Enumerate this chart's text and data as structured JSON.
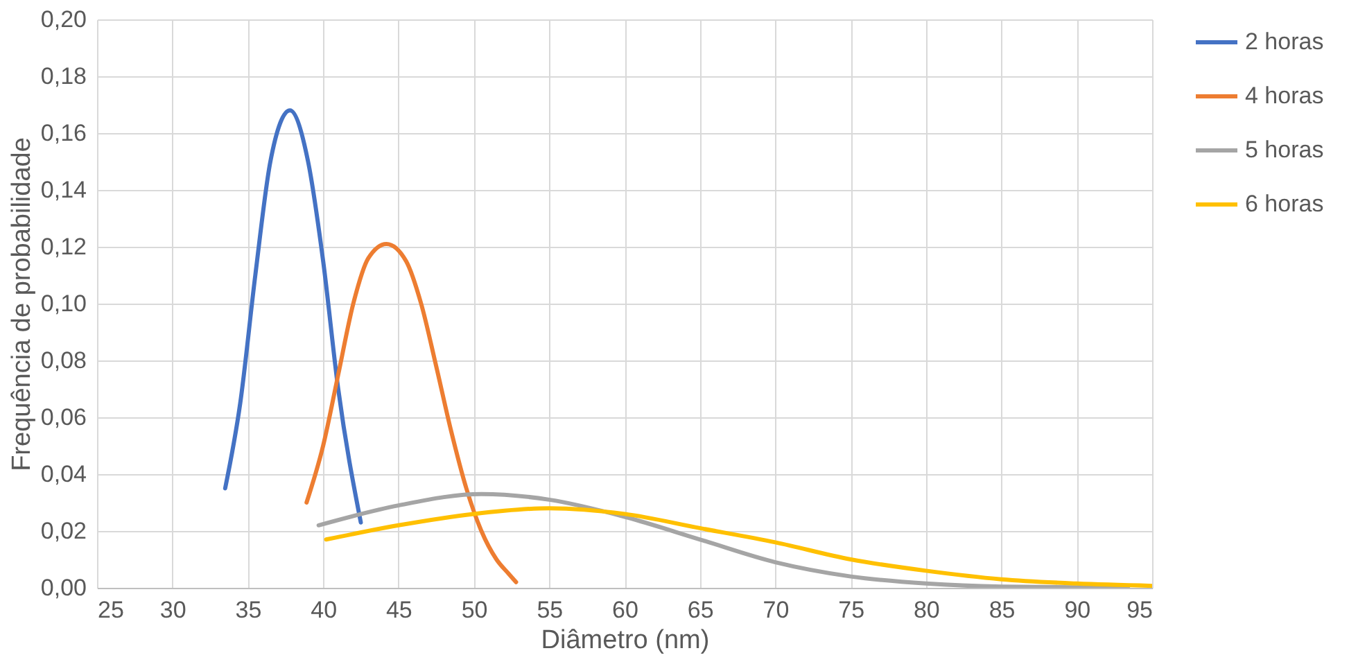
{
  "chart_data": {
    "type": "line",
    "xlabel": "Diâmetro (nm)",
    "ylabel": "Frequência de probabilidade",
    "xlim": [
      25,
      95
    ],
    "xticks": [
      25,
      30,
      35,
      40,
      45,
      50,
      55,
      60,
      65,
      70,
      75,
      80,
      85,
      90,
      95
    ],
    "ylim": [
      0,
      0.2
    ],
    "yticks": [
      {
        "value": 0,
        "label": "0,00"
      },
      {
        "value": 0.02,
        "label": "0,02"
      },
      {
        "value": 0.04,
        "label": "0,04"
      },
      {
        "value": 0.06,
        "label": "0,06"
      },
      {
        "value": 0.08,
        "label": "0,08"
      },
      {
        "value": 0.1,
        "label": "0,10"
      },
      {
        "value": 0.12,
        "label": "0,12"
      },
      {
        "value": 0.14,
        "label": "0,14"
      },
      {
        "value": 0.16,
        "label": "0,16"
      },
      {
        "value": 0.18,
        "label": "0,18"
      },
      {
        "value": 0.2,
        "label": "0,20"
      }
    ],
    "grid": true,
    "legend": "right",
    "marker": "none",
    "line_style": "solid",
    "series": [
      {
        "name": "2 horas",
        "color": "#4472c4",
        "x": [
          33.5,
          34.5,
          35.5,
          36.5,
          37.8,
          39,
          40,
          41,
          42.5
        ],
        "values": [
          0.035,
          0.065,
          0.11,
          0.15,
          0.168,
          0.15,
          0.115,
          0.07,
          0.023
        ]
      },
      {
        "name": "4 horas",
        "color": "#ed7d31",
        "x": [
          38.9,
          40,
          41,
          42,
          43,
          44.2,
          45.5,
          46.5,
          47.5,
          48.5,
          49.5,
          50.5,
          51.5,
          52.3,
          52.8
        ],
        "values": [
          0.03,
          0.05,
          0.075,
          0.1,
          0.116,
          0.121,
          0.115,
          0.1,
          0.078,
          0.055,
          0.035,
          0.02,
          0.01,
          0.005,
          0.002
        ]
      },
      {
        "name": "5 horas",
        "color": "#a5a5a5",
        "x": [
          39.7,
          45,
          50.5,
          55,
          60,
          65,
          70,
          75,
          80,
          85,
          93.4
        ],
        "values": [
          0.022,
          0.029,
          0.033,
          0.031,
          0.025,
          0.017,
          0.009,
          0.004,
          0.0015,
          0.0004,
          0
        ]
      },
      {
        "name": "6 horas",
        "color": "#ffc000",
        "x": [
          40.2,
          45,
          50,
          55,
          60,
          65,
          70,
          75,
          80,
          85,
          90,
          95
        ],
        "values": [
          0.017,
          0.022,
          0.026,
          0.028,
          0.026,
          0.021,
          0.016,
          0.01,
          0.006,
          0.003,
          0.0015,
          0.0007
        ]
      }
    ]
  }
}
